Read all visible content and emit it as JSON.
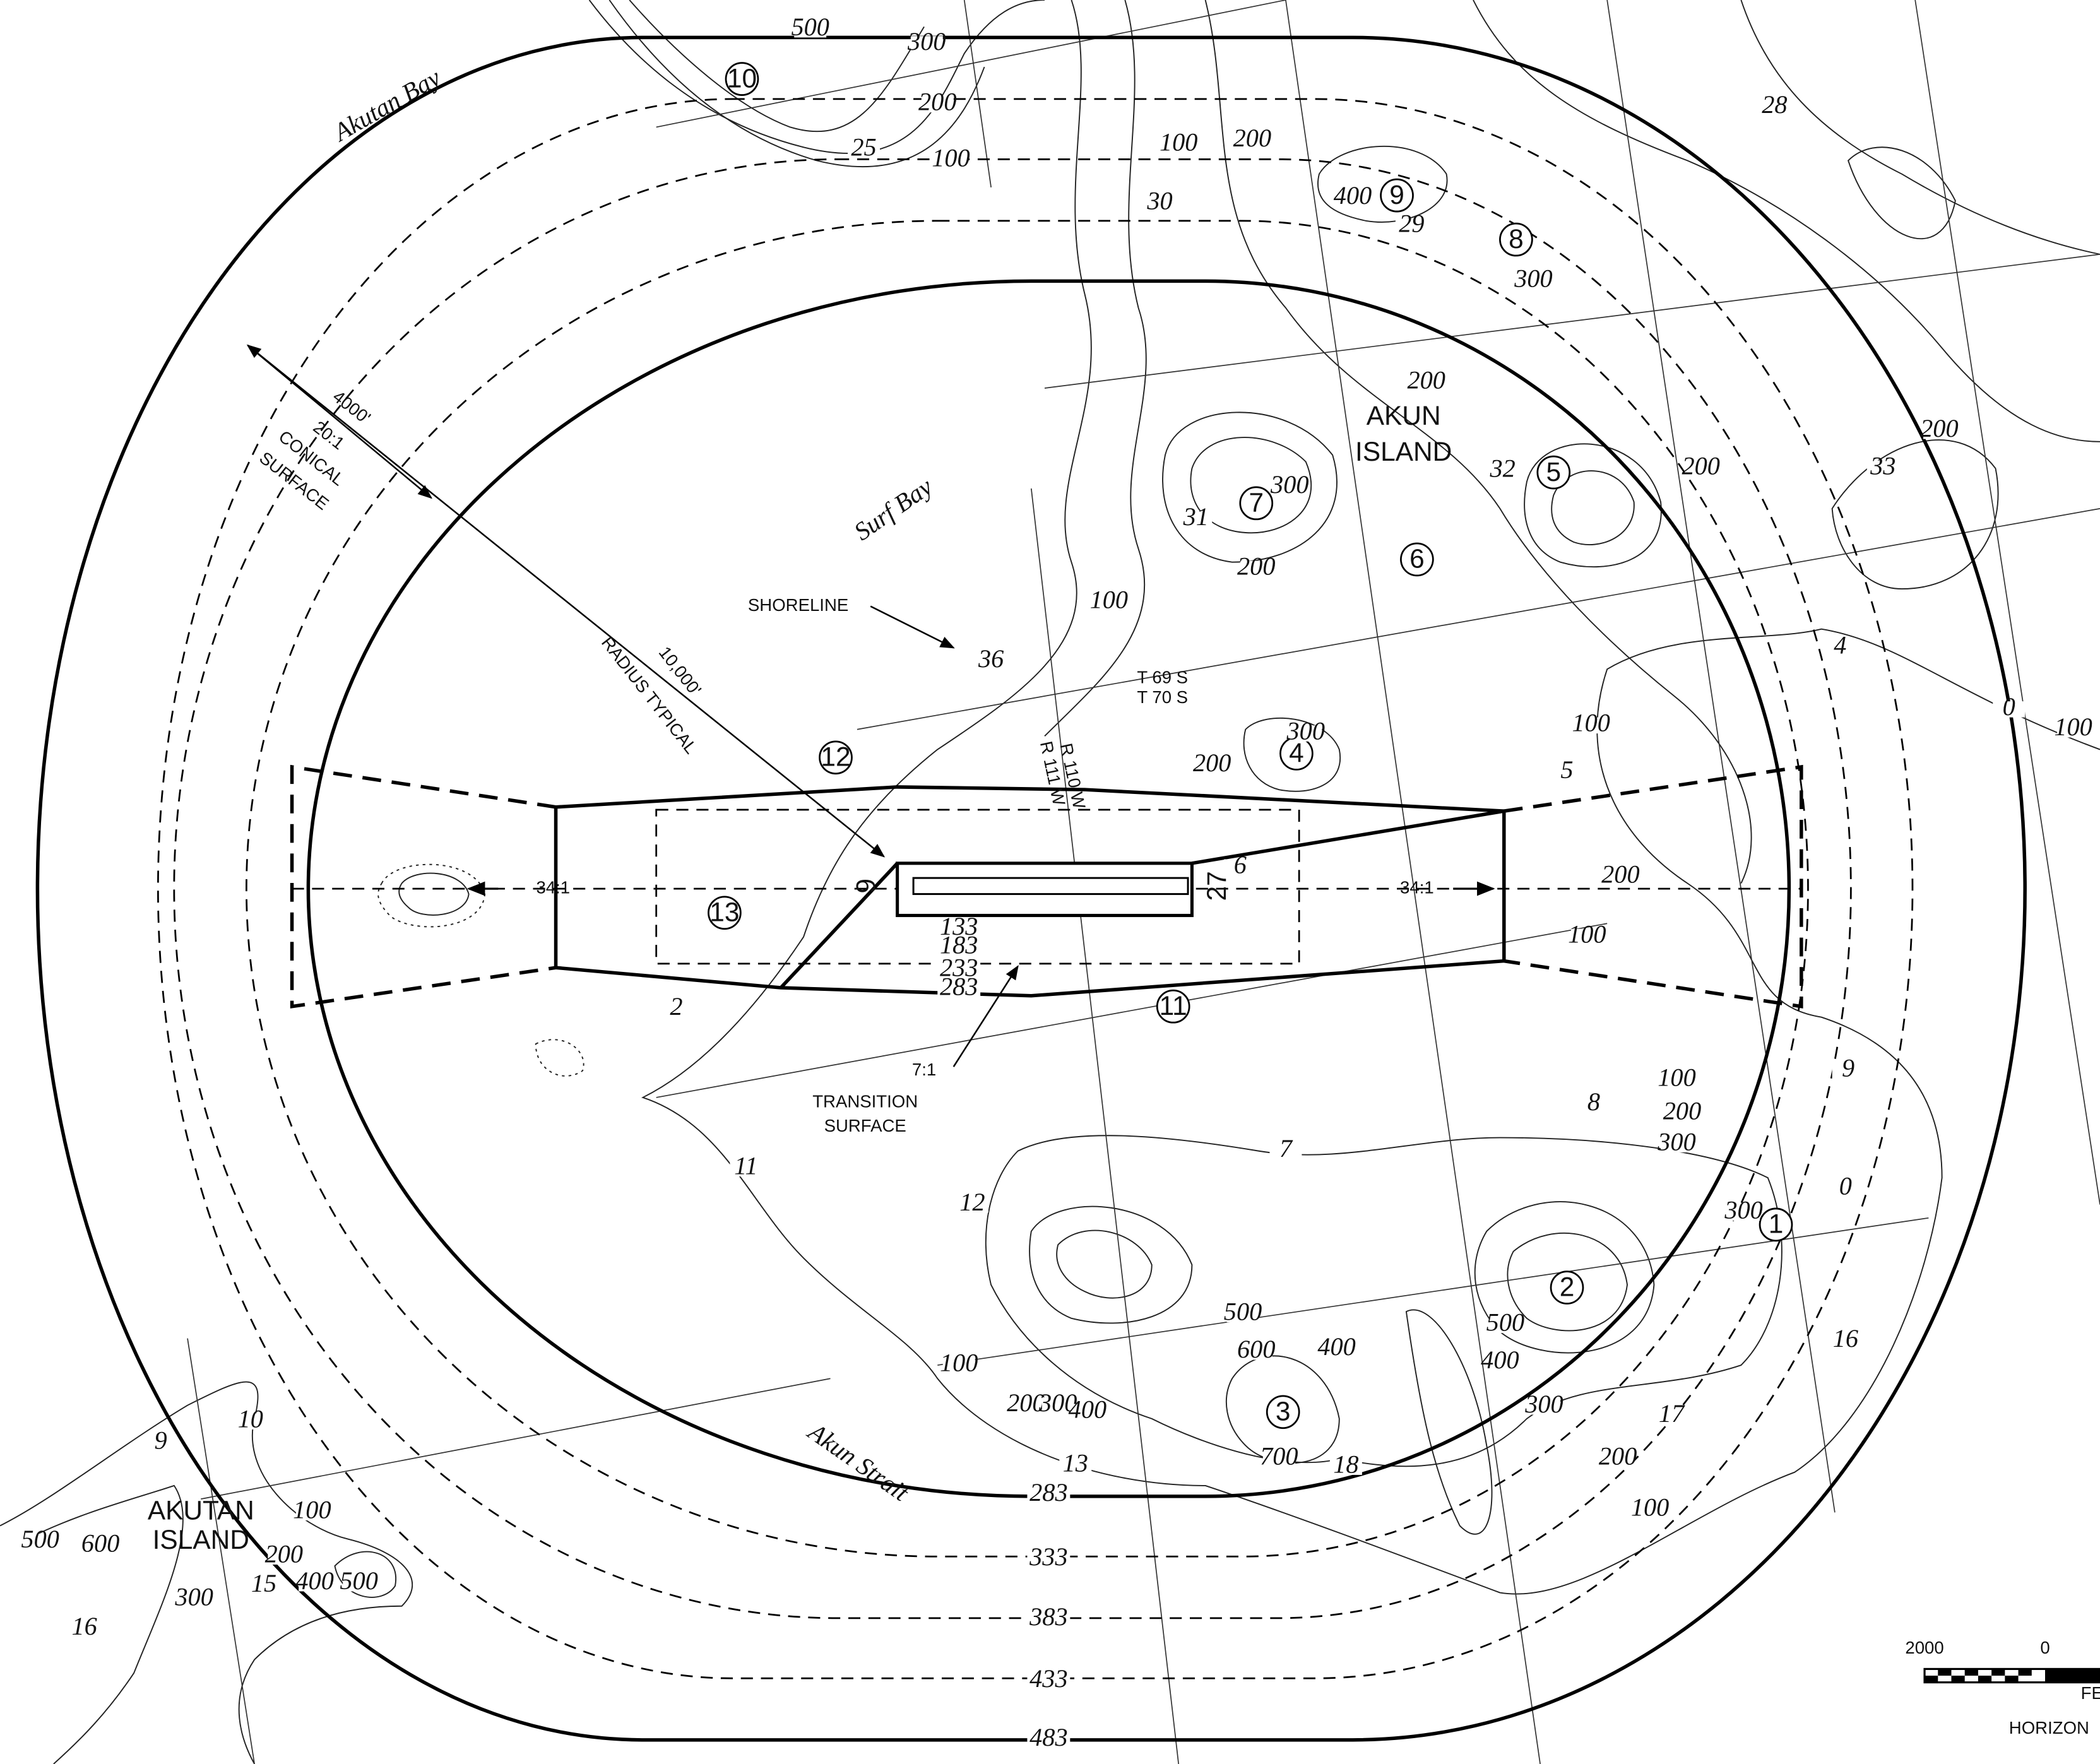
{
  "places": {
    "akutan_bay": "Akutan Bay",
    "surf_bay": "Surf Bay",
    "akun_island": [
      "AKUN",
      "ISLAND"
    ],
    "akutan_island": [
      "AKUTAN",
      "ISLAND"
    ],
    "akun_strait": "Akun Strait"
  },
  "annotations": {
    "conical_width": "4000'",
    "conical_slope": "20:1",
    "conical_name": [
      "CONICAL",
      "SURFACE"
    ],
    "radius": "10,000'",
    "radius_note": "RADIUS TYPICAL",
    "shoreline": "SHORELINE",
    "transition_slope": "7:1",
    "transition_name": [
      "TRANSITION",
      "SURFACE"
    ],
    "approach_left": "34:1",
    "approach_right": "34:1",
    "runway_west": "9",
    "runway_east": "27"
  },
  "township": [
    "T 69 S",
    "T 70 S",
    "R 110 W",
    "R 111 W"
  ],
  "obstructions": [
    "1",
    "2",
    "3",
    "4",
    "5",
    "6",
    "7",
    "8",
    "9",
    "10",
    "11",
    "12",
    "13"
  ],
  "surface_elevations": [
    "133",
    "183",
    "233",
    "283",
    "283",
    "333",
    "383",
    "433",
    "483"
  ],
  "contours": [
    "500",
    "300",
    "200",
    "100",
    "25",
    "100",
    "200",
    "30",
    "400",
    "29",
    "300",
    "28",
    "200",
    "32",
    "200",
    "200",
    "33",
    "31",
    "300",
    "200",
    "100",
    "36",
    "300",
    "200",
    "100",
    "5",
    "4",
    "200",
    "100",
    "6",
    "2",
    "100",
    "200",
    "300",
    "8",
    "9",
    "7",
    "11",
    "12",
    "300",
    "0",
    "500",
    "400",
    "600",
    "500",
    "400",
    "300",
    "17",
    "16",
    "200",
    "100",
    "100",
    "200",
    "300",
    "400",
    "700",
    "18",
    "13",
    "10",
    "9",
    "100",
    "500",
    "600",
    "200",
    "15",
    "400",
    "500",
    "300",
    "16",
    "100",
    "0"
  ],
  "scale": {
    "left": "2000",
    "zero": "0",
    "unit": "FE",
    "caption": "HORIZON"
  }
}
